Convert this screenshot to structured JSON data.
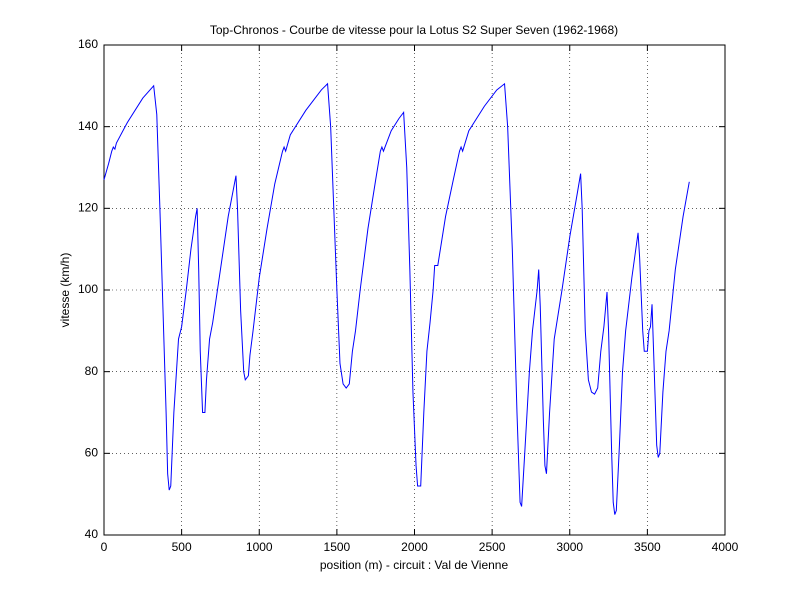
{
  "chart_data": {
    "type": "line",
    "title": "Top-Chronos - Courbe de vitesse pour la Lotus S2 Super Seven (1962-1968)",
    "xlabel": "position (m) - circuit : Val de Vienne",
    "ylabel": "vitesse (km/h)",
    "color": "#0000ff",
    "grid": true,
    "xlim": [
      0,
      4000
    ],
    "xticks": [
      0,
      500,
      1000,
      1500,
      2000,
      2500,
      3000,
      3500,
      4000
    ],
    "ylim": [
      40,
      160
    ],
    "yticks": [
      40,
      60,
      80,
      100,
      120,
      140,
      160
    ],
    "x": [
      0,
      30,
      50,
      60,
      70,
      80,
      150,
      250,
      320,
      340,
      360,
      380,
      400,
      410,
      420,
      430,
      450,
      480,
      500,
      530,
      560,
      590,
      600,
      610,
      620,
      635,
      650,
      660,
      680,
      700,
      750,
      800,
      850,
      860,
      880,
      900,
      910,
      930,
      940,
      960,
      1000,
      1050,
      1100,
      1150,
      1160,
      1170,
      1200,
      1300,
      1400,
      1440,
      1460,
      1480,
      1500,
      1520,
      1540,
      1560,
      1580,
      1600,
      1620,
      1650,
      1700,
      1750,
      1780,
      1790,
      1800,
      1850,
      1900,
      1930,
      1950,
      1970,
      1990,
      2010,
      2020,
      2040,
      2060,
      2080,
      2100,
      2120,
      2130,
      2150,
      2200,
      2250,
      2290,
      2300,
      2310,
      2350,
      2450,
      2530,
      2580,
      2600,
      2630,
      2660,
      2680,
      2690,
      2710,
      2740,
      2760,
      2790,
      2800,
      2810,
      2830,
      2840,
      2850,
      2870,
      2900,
      2950,
      3000,
      3050,
      3070,
      3080,
      3100,
      3120,
      3140,
      3160,
      3180,
      3200,
      3220,
      3240,
      3250,
      3270,
      3280,
      3290,
      3300,
      3320,
      3340,
      3360,
      3400,
      3440,
      3450,
      3470,
      3480,
      3500,
      3510,
      3520,
      3530,
      3540,
      3560,
      3570,
      3580,
      3600,
      3620,
      3640,
      3680,
      3730,
      3770
    ],
    "values": [
      127,
      131,
      134,
      135,
      134.5,
      136,
      141,
      147,
      150,
      143,
      120,
      95,
      70,
      55,
      51,
      52,
      70,
      88,
      91,
      100,
      110,
      118,
      120,
      105,
      85,
      70,
      70,
      78,
      88,
      92,
      105,
      118,
      128,
      120,
      95,
      80,
      78,
      79,
      84,
      90,
      103,
      115,
      126,
      134,
      135,
      134,
      138,
      144,
      149,
      150.5,
      140,
      120,
      100,
      82,
      77,
      76,
      77,
      85,
      90,
      100,
      115,
      127,
      134,
      135,
      134,
      139,
      142,
      143.5,
      130,
      105,
      75,
      57,
      52,
      52,
      70,
      85,
      92,
      100,
      106,
      106,
      118,
      127,
      134,
      135,
      134,
      139,
      145,
      149,
      150.5,
      140,
      110,
      70,
      48,
      47,
      60,
      80,
      90,
      100,
      105,
      96,
      68,
      57,
      55,
      70,
      88,
      100,
      113,
      124,
      128.5,
      120,
      90,
      78,
      75,
      74.5,
      76,
      85,
      91,
      99.5,
      90,
      60,
      48,
      45,
      46,
      62,
      80,
      90,
      103,
      114,
      108,
      90,
      85,
      85,
      90,
      91,
      96.5,
      85,
      62,
      59,
      60,
      75,
      85,
      90,
      105,
      118,
      126.5
    ]
  }
}
